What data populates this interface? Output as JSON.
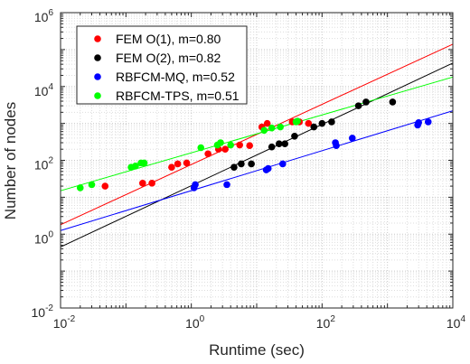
{
  "chart_data": {
    "type": "scatter",
    "xlabel": "Runtime (sec)",
    "ylabel": "Number of nodes",
    "x_scale": "log",
    "y_scale": "log",
    "xlim": [
      0.01,
      10000
    ],
    "ylim": [
      0.01,
      1000000
    ],
    "x_major_ticks": [
      {
        "value": 0.01,
        "base": "10",
        "exp": "-2"
      },
      {
        "value": 1,
        "base": "10",
        "exp": "0"
      },
      {
        "value": 100,
        "base": "10",
        "exp": "2"
      },
      {
        "value": 10000,
        "base": "10",
        "exp": "4"
      }
    ],
    "y_major_ticks": [
      {
        "value": 0.01,
        "base": "10",
        "exp": "-2"
      },
      {
        "value": 1,
        "base": "10",
        "exp": "0"
      },
      {
        "value": 100,
        "base": "10",
        "exp": "2"
      },
      {
        "value": 10000,
        "base": "10",
        "exp": "4"
      },
      {
        "value": 1000000,
        "base": "10",
        "exp": "6"
      }
    ],
    "grid": "major and minor (dotted)",
    "legend_position": "top-left",
    "series": [
      {
        "name": "FEM O(1), m=0.80",
        "color": "#ff0000",
        "points": [
          [
            0.048,
            20
          ],
          [
            0.18,
            24
          ],
          [
            0.25,
            24
          ],
          [
            0.5,
            65
          ],
          [
            0.62,
            80
          ],
          [
            0.85,
            85
          ],
          [
            1.8,
            150
          ],
          [
            2.6,
            200
          ],
          [
            3.3,
            200
          ],
          [
            5.5,
            260
          ],
          [
            7.8,
            250
          ],
          [
            12,
            800
          ],
          [
            14.5,
            1000
          ],
          [
            35,
            1100
          ],
          [
            45,
            1100
          ],
          [
            62,
            1000
          ]
        ],
        "fit": [
          [
            0.01,
            1.8
          ],
          [
            10000,
            140000
          ]
        ]
      },
      {
        "name": "FEM O(2), m=0.82",
        "color": "#000000",
        "points": [
          [
            4.5,
            65
          ],
          [
            5.8,
            80
          ],
          [
            8.3,
            80
          ],
          [
            17,
            230
          ],
          [
            22,
            280
          ],
          [
            27,
            280
          ],
          [
            38,
            450
          ],
          [
            75,
            800
          ],
          [
            100,
            1000
          ],
          [
            140,
            1100
          ],
          [
            360,
            3000
          ],
          [
            470,
            3800
          ],
          [
            1200,
            3800
          ]
        ],
        "fit": [
          [
            0.01,
            0.45
          ],
          [
            10000,
            43000
          ]
        ]
      },
      {
        "name": "RBFCM-MQ, m=0.52",
        "color": "#0000ff",
        "points": [
          [
            1.1,
            18
          ],
          [
            1.15,
            22
          ],
          [
            3.5,
            22
          ],
          [
            14,
            55
          ],
          [
            15,
            60
          ],
          [
            25,
            80
          ],
          [
            160,
            300
          ],
          [
            165,
            250
          ],
          [
            290,
            400
          ],
          [
            2900,
            900
          ],
          [
            3000,
            1050
          ],
          [
            4200,
            1100
          ]
        ],
        "fit": [
          [
            0.01,
            1.25
          ],
          [
            10000,
            2200
          ]
        ]
      },
      {
        "name": "RBFCM-TPS, m=0.51",
        "color": "#00ff00",
        "points": [
          [
            0.02,
            18
          ],
          [
            0.03,
            22
          ],
          [
            0.12,
            65
          ],
          [
            0.14,
            70
          ],
          [
            0.17,
            85
          ],
          [
            0.19,
            85
          ],
          [
            1.4,
            220
          ],
          [
            2.5,
            260
          ],
          [
            2.8,
            300
          ],
          [
            4,
            260
          ],
          [
            13,
            650
          ],
          [
            17,
            750
          ],
          [
            23,
            800
          ],
          [
            40,
            1100
          ],
          [
            42,
            1150
          ]
        ],
        "fit": [
          [
            0.01,
            15
          ],
          [
            10000,
            18000
          ]
        ]
      }
    ]
  }
}
